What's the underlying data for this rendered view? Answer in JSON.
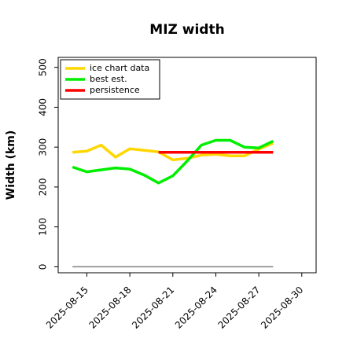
{
  "chart_data": {
    "type": "line",
    "title": "MIZ width",
    "xlabel": "",
    "ylabel": "Width (km)",
    "xlim": [
      "2025-08-13",
      "2025-08-31"
    ],
    "ylim": [
      -15,
      525
    ],
    "grid": false,
    "legend_position": "top-left",
    "xticks": [
      "2025-08-15",
      "2025-08-18",
      "2025-08-21",
      "2025-08-24",
      "2025-08-27",
      "2025-08-30"
    ],
    "yticks": [
      0,
      100,
      200,
      300,
      400,
      500
    ],
    "series": [
      {
        "name": "ice chart data",
        "color": "#FFD700",
        "x": [
          "2025-08-14",
          "2025-08-15",
          "2025-08-16",
          "2025-08-17",
          "2025-08-18",
          "2025-08-19",
          "2025-08-20",
          "2025-08-21",
          "2025-08-22",
          "2025-08-23",
          "2025-08-24",
          "2025-08-25",
          "2025-08-26",
          "2025-08-27",
          "2025-08-28"
        ],
        "values": [
          287,
          290,
          305,
          275,
          296,
          292,
          288,
          268,
          272,
          280,
          282,
          278,
          278,
          295,
          310
        ]
      },
      {
        "name": "best est.",
        "color": "#00EE00",
        "x": [
          "2025-08-14",
          "2025-08-15",
          "2025-08-16",
          "2025-08-17",
          "2025-08-18",
          "2025-08-19",
          "2025-08-20",
          "2025-08-21",
          "2025-08-22",
          "2025-08-23",
          "2025-08-24",
          "2025-08-25",
          "2025-08-26",
          "2025-08-27",
          "2025-08-28"
        ],
        "values": [
          250,
          238,
          243,
          248,
          245,
          230,
          210,
          228,
          265,
          305,
          317,
          317,
          300,
          298,
          315
        ]
      },
      {
        "name": "persistence",
        "color": "#FF0000",
        "x": [
          "2025-08-20",
          "2025-08-28"
        ],
        "values": [
          287,
          287
        ]
      },
      {
        "name": "",
        "color": "#808080",
        "x": [
          "2025-08-14",
          "2025-08-28"
        ],
        "values": [
          0,
          0
        ]
      }
    ]
  }
}
